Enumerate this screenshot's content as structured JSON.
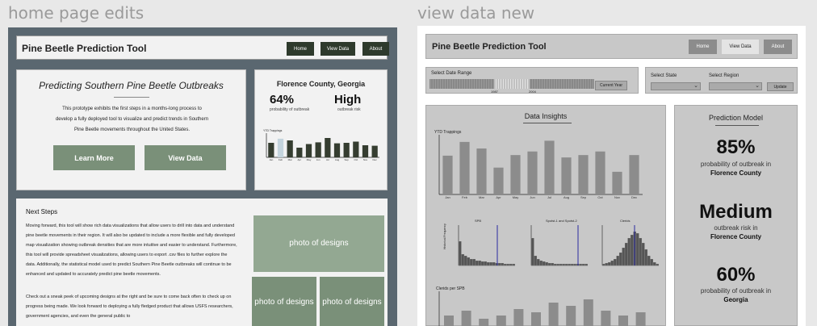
{
  "frames": {
    "left_title": "home page edits",
    "right_title": "view data new"
  },
  "left": {
    "app_title": "Pine Beetle Prediction Tool",
    "nav": [
      "Home",
      "View Data",
      "About"
    ],
    "hero": {
      "title": "Predicting Southern Pine Beetle Outbreaks",
      "body": "This prototype exhibits the first steps in a months-long process to develop a fully deployed tool to visualize and predict trends in Southern Pine Beetle movements throughout the United States.",
      "learn_more": "Learn More",
      "view_data": "View Data"
    },
    "county": {
      "title": "Florence County, Georgia",
      "stat1_value": "64%",
      "stat1_label": "probability of outbreak",
      "stat2_value": "High",
      "stat2_label": "outbreak risk",
      "mini_chart_label": "YTD Trappings"
    },
    "next_steps": {
      "title": "Next Steps",
      "p1": "Moving forward, this tool will show rich data visualizations that allow users to drill into data and understand pine beetle movements in their region. It will also be updated to include a more flexible and fully developed map visualization showing outbreak densities that are more intuitive and easier to understand. Furthermore, this tool will provide spreadsheet visualizations, allowing users to export .csv files to further explore the data. Additionally, the statistical model used to predict Southern Pine Beetle outbreaks will continue to be enhanced and updated to accurately predict pine beetle movements.",
      "p2": "Check out a sneak peek of upcoming designs at the right and be sure to come back often to check up on progress being made. We look forward to deploying a fully fledged product that allows USFS researchers, government agencies, and even the general public to",
      "photo1": "photo of designs",
      "photo2": "photo of designs",
      "photo3": "photo of designs"
    }
  },
  "right": {
    "app_title": "Pine Beetle Prediction Tool",
    "nav": [
      "Home",
      "View Data",
      "About"
    ],
    "date_range": {
      "label": "Select Date Range",
      "start": "1987",
      "end": "2004",
      "button": "Current Year"
    },
    "region": {
      "state_label": "Select State",
      "region_label": "Select Region",
      "update": "Update"
    },
    "insights": {
      "title": "Data Insights",
      "hist1": "SPB",
      "hist2": "Spotst-1 and Spotst-2",
      "hist3": "Clerids",
      "hist_ylabel": "Historical Frequency",
      "clerids_label": "Clerids per SPB"
    },
    "model": {
      "title": "Prediction Model",
      "v1": "85%",
      "v1_label": "probability of outbreak in",
      "v1_loc": "Florence County",
      "v2": "Medium",
      "v2_label": "outbreak risk in",
      "v2_loc": "Florence County",
      "v3": "60%",
      "v3_label": "probability of outbreak in",
      "v3_loc": "Georgia"
    }
  },
  "colors": {
    "frame_dark": "#5a6770",
    "nav_dark": "#2e3a2c",
    "button_green": "#7a9079",
    "bar_dark": "#353d30",
    "bar_highlight": "#c4d4dd",
    "bar_grey": "#8c8c8c"
  },
  "chart_data": [
    {
      "type": "bar",
      "title": "",
      "ylabel": "YTD Trappings",
      "categories": [
        "Jan",
        "Feb",
        "Mar",
        "Apr",
        "May",
        "Jun",
        "Jul",
        "Aug",
        "Sep",
        "Oct",
        "Nov",
        "Dec"
      ],
      "values": [
        60,
        77,
        70,
        40,
        55,
        62,
        80,
        58,
        60,
        65,
        50,
        48
      ],
      "highlight_index": 1
    },
    {
      "type": "bar",
      "title": "",
      "ylabel": "YTD Trappings",
      "categories": [
        "Jan",
        "Feb",
        "Mar",
        "Apr",
        "May",
        "Jun",
        "Jul",
        "Aug",
        "Sep",
        "Oct",
        "Nov",
        "Dec"
      ],
      "values": [
        65,
        88,
        77,
        45,
        66,
        72,
        90,
        62,
        66,
        72,
        38,
        66
      ]
    }
  ]
}
